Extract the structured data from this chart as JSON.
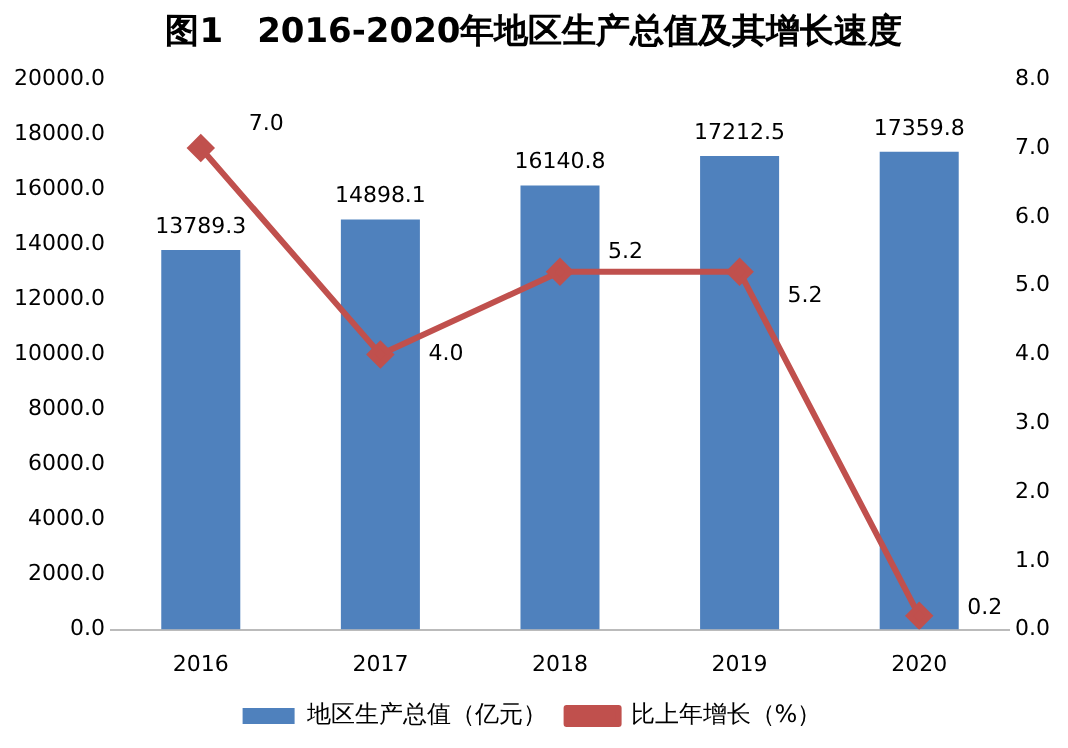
{
  "chart_data": {
    "type": "bar",
    "title": "图1　2016-2020年地区生产总值及其增长速度",
    "categories": [
      "2016",
      "2017",
      "2018",
      "2019",
      "2020"
    ],
    "series": [
      {
        "name": "地区生产总值（亿元）",
        "color": "#4f81bd",
        "values": [
          13789.3,
          14898.1,
          16140.8,
          17212.5,
          17359.8
        ],
        "value_labels": [
          "13789.3",
          "14898.1",
          "16140.8",
          "17212.5",
          "17359.8"
        ]
      },
      {
        "name": "比上年增长（%）",
        "type": "line",
        "axis": "y2",
        "color": "#c0504d",
        "marker": "diamond",
        "values": [
          7.0,
          4.0,
          5.2,
          5.2,
          0.2
        ],
        "value_labels": [
          "7.0",
          "4.0",
          "5.2",
          "5.2",
          "0.2"
        ]
      }
    ],
    "ylim": [
      0,
      20000
    ],
    "yticks": [
      {
        "value": 0,
        "label": "0.0"
      },
      {
        "value": 2000,
        "label": "2000.0"
      },
      {
        "value": 4000,
        "label": "4000.0"
      },
      {
        "value": 6000,
        "label": "6000.0"
      },
      {
        "value": 8000,
        "label": "8000.0"
      },
      {
        "value": 10000,
        "label": "10000.0"
      },
      {
        "value": 12000,
        "label": "12000.0"
      },
      {
        "value": 14000,
        "label": "14000.0"
      },
      {
        "value": 16000,
        "label": "16000.0"
      },
      {
        "value": 18000,
        "label": "18000.0"
      },
      {
        "value": 20000,
        "label": "20000.0"
      }
    ],
    "y2lim": [
      0,
      8
    ],
    "y2ticks": [
      {
        "value": 0,
        "label": "0.0"
      },
      {
        "value": 1,
        "label": "1.0"
      },
      {
        "value": 2,
        "label": "2.0"
      },
      {
        "value": 3,
        "label": "3.0"
      },
      {
        "value": 4,
        "label": "4.0"
      },
      {
        "value": 5,
        "label": "5.0"
      },
      {
        "value": 6,
        "label": "6.0"
      },
      {
        "value": 7,
        "label": "7.0"
      },
      {
        "value": 8,
        "label": "8.0"
      }
    ],
    "grid": false,
    "legend": "bottom"
  }
}
